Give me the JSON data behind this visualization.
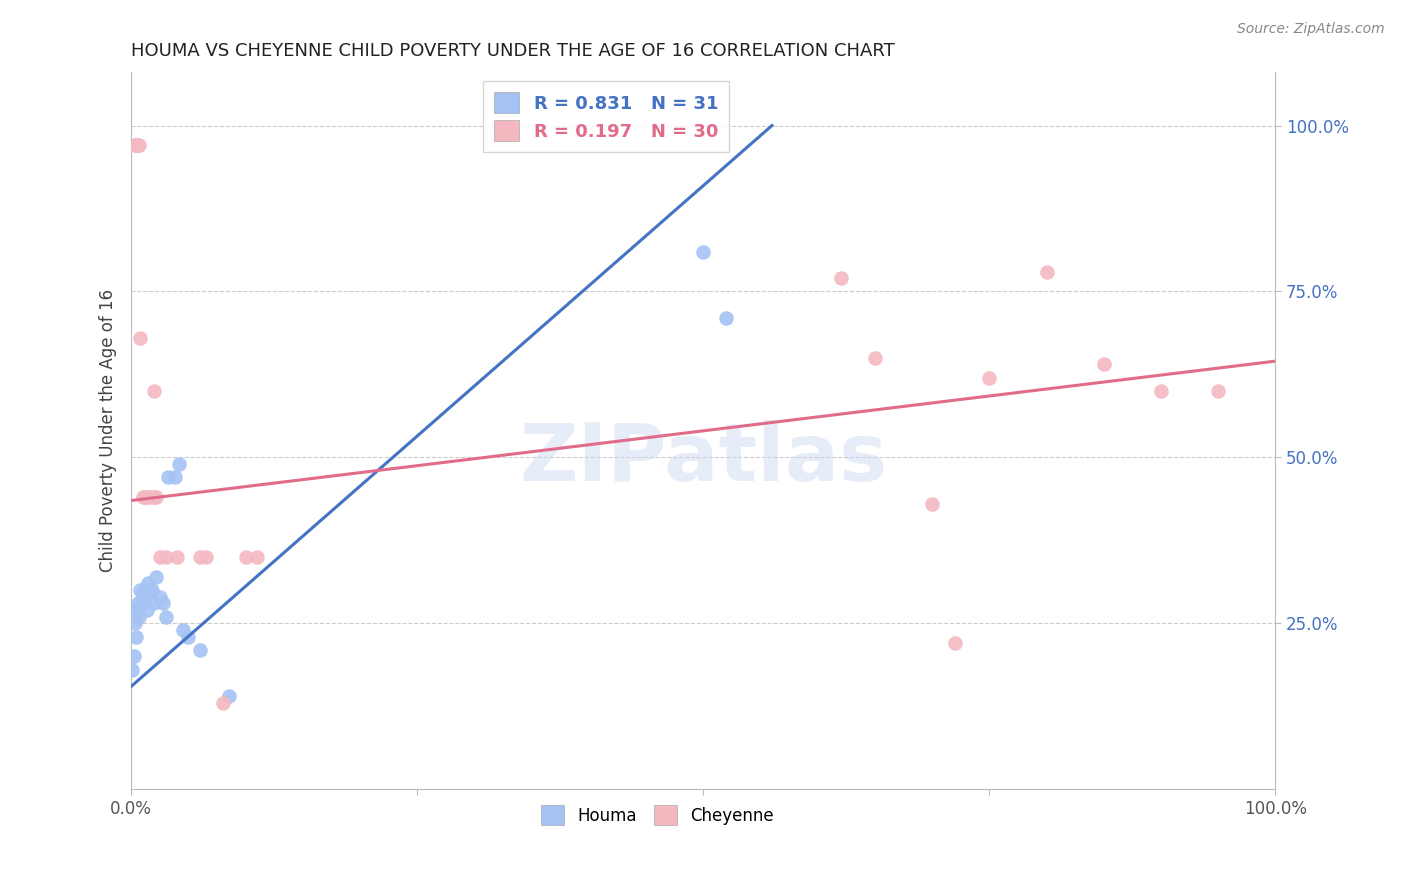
{
  "title": "HOUMA VS CHEYENNE CHILD POVERTY UNDER THE AGE OF 16 CORRELATION CHART",
  "source": "Source: ZipAtlas.com",
  "ylabel": "Child Poverty Under the Age of 16",
  "watermark": "ZIPatlas",
  "houma_R": 0.831,
  "houma_N": 31,
  "cheyenne_R": 0.197,
  "cheyenne_N": 30,
  "houma_color": "#a4c2f4",
  "cheyenne_color": "#f4b8c1",
  "houma_line_color": "#4472c4",
  "cheyenne_line_color": "#e06c8a",
  "right_tick_color": "#4472c4",
  "background_color": "#ffffff",
  "houma_x": [
    0.001,
    0.002,
    0.003,
    0.004,
    0.005,
    0.006,
    0.007,
    0.008,
    0.009,
    0.01,
    0.011,
    0.012,
    0.013,
    0.014,
    0.015,
    0.016,
    0.018,
    0.02,
    0.022,
    0.025,
    0.028,
    0.03,
    0.032,
    0.038,
    0.042,
    0.045,
    0.05,
    0.06,
    0.085,
    0.5,
    0.52
  ],
  "houma_y": [
    0.18,
    0.2,
    0.25,
    0.23,
    0.27,
    0.28,
    0.26,
    0.3,
    0.28,
    0.29,
    0.3,
    0.29,
    0.3,
    0.27,
    0.31,
    0.3,
    0.3,
    0.28,
    0.32,
    0.29,
    0.28,
    0.26,
    0.47,
    0.47,
    0.49,
    0.24,
    0.23,
    0.21,
    0.14,
    0.81,
    0.71
  ],
  "cheyenne_x": [
    0.003,
    0.004,
    0.006,
    0.007,
    0.008,
    0.01,
    0.012,
    0.013,
    0.015,
    0.018,
    0.02,
    0.022,
    0.03,
    0.06,
    0.065,
    0.1,
    0.11,
    0.62,
    0.65,
    0.7,
    0.72,
    0.75,
    0.8,
    0.85,
    0.9,
    0.95,
    0.02,
    0.025,
    0.04,
    0.08
  ],
  "cheyenne_y": [
    0.97,
    0.97,
    0.97,
    0.97,
    0.68,
    0.44,
    0.44,
    0.44,
    0.44,
    0.44,
    0.44,
    0.44,
    0.35,
    0.35,
    0.35,
    0.35,
    0.35,
    0.77,
    0.65,
    0.43,
    0.22,
    0.62,
    0.78,
    0.64,
    0.6,
    0.6,
    0.6,
    0.35,
    0.35,
    0.13
  ],
  "houma_line_x": [
    0.0,
    0.56
  ],
  "houma_line_y": [
    0.155,
    1.0
  ],
  "cheyenne_line_x": [
    0.0,
    1.0
  ],
  "cheyenne_line_y": [
    0.435,
    0.645
  ],
  "xlim": [
    0.0,
    1.0
  ],
  "ylim": [
    0.0,
    1.08
  ],
  "xtick_positions": [
    0.0,
    0.25,
    0.5,
    0.75,
    1.0
  ],
  "xtick_labels": [
    "0.0%",
    "",
    "",
    "",
    "100.0%"
  ],
  "ytick_positions": [
    0.25,
    0.5,
    0.75,
    1.0
  ],
  "ytick_labels": [
    "25.0%",
    "50.0%",
    "75.0%",
    "100.0%"
  ]
}
